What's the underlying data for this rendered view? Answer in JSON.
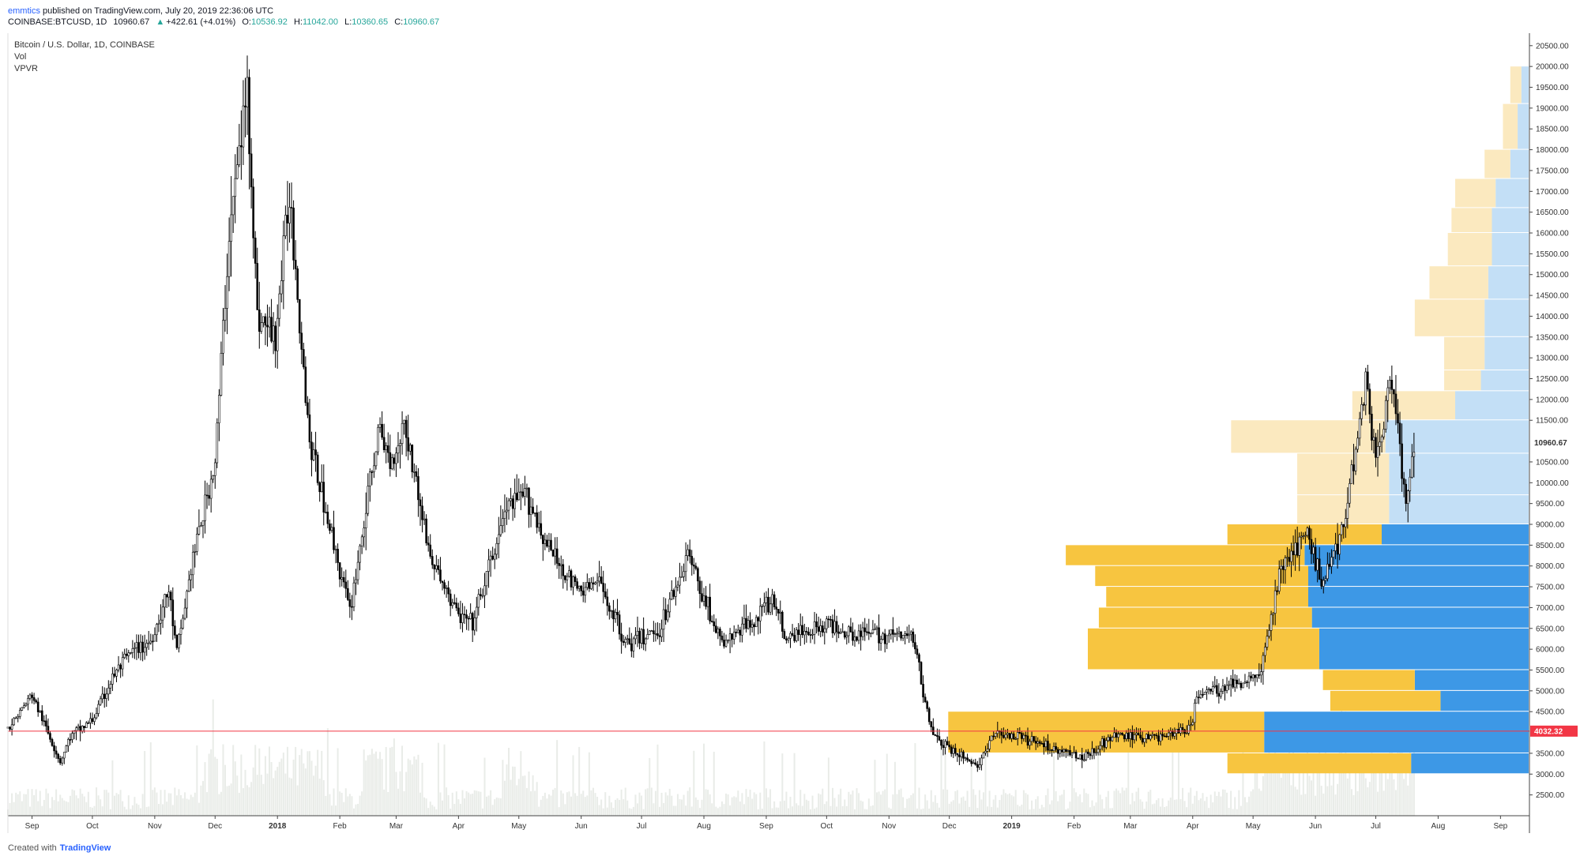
{
  "header": {
    "user": "emmtics",
    "published_text": " published on TradingView.com, July 20, 2019 22:36:06 UTC",
    "symbol": "COINBASE:BTCUSD, 1D",
    "last": "10960.67",
    "arrow": "▲",
    "change": "+422.61 (+4.01%)",
    "o_label": "O:",
    "o_val": "10536.92",
    "h_label": "H:",
    "h_val": "11042.00",
    "l_label": "L:",
    "l_val": "10360.65",
    "c_label": "C:",
    "c_val": "10960.67"
  },
  "legend": {
    "title": "Bitcoin / U.S. Dollar, 1D, COINBASE",
    "vol": "Vol",
    "vpvr": "VPVR"
  },
  "footer": {
    "created": "Created with",
    "brand": "TradingView"
  },
  "colors": {
    "candle": "#000000",
    "price_line": "#f23645",
    "volume_bar": "#e9ece8",
    "vpvr_up": "#f7c540",
    "vpvr_down": "#3d98e6",
    "vpvr_up_light": "#fbe9bf",
    "vpvr_down_light": "#c3dff6",
    "last_price_tag": "#000000"
  },
  "chart_data": {
    "type": "candlestick",
    "x_ticks": [
      "Sep",
      "Oct",
      "Nov",
      "Dec",
      "2018",
      "Feb",
      "Mar",
      "Apr",
      "May",
      "Jun",
      "Jul",
      "Aug",
      "Sep",
      "Oct",
      "Nov",
      "Dec",
      "2019",
      "Feb",
      "Mar",
      "Apr",
      "May",
      "Jun",
      "Jul",
      "Aug",
      "Sep"
    ],
    "y_ticks": [
      "20500.00",
      "20000.00",
      "19500.00",
      "19000.00",
      "18500.00",
      "18000.00",
      "17500.00",
      "17000.00",
      "16500.00",
      "16000.00",
      "15500.00",
      "15000.00",
      "14500.00",
      "14000.00",
      "13500.00",
      "13000.00",
      "12500.00",
      "12000.00",
      "11500.00",
      "10500.00",
      "10000.00",
      "9500.00",
      "9000.00",
      "8500.00",
      "8000.00",
      "7500.00",
      "7000.00",
      "6500.00",
      "6000.00",
      "5500.00",
      "5000.00",
      "4500.00",
      "3500.00",
      "3000.00",
      "2500.00"
    ],
    "ylim": [
      2000,
      20800
    ],
    "last_price_label": "10960.67",
    "horizontal_line_label": "4032.32",
    "horizontal_line_value": 4032.32,
    "price_path": [
      [
        "2017-08-20",
        4100
      ],
      [
        "2017-09-01",
        4900
      ],
      [
        "2017-09-15",
        3300
      ],
      [
        "2017-09-20",
        3900
      ],
      [
        "2017-10-01",
        4300
      ],
      [
        "2017-10-12",
        5400
      ],
      [
        "2017-10-20",
        5900
      ],
      [
        "2017-10-30",
        6200
      ],
      [
        "2017-11-08",
        7400
      ],
      [
        "2017-11-12",
        5900
      ],
      [
        "2017-11-20",
        8200
      ],
      [
        "2017-12-01",
        10500
      ],
      [
        "2017-12-08",
        16000
      ],
      [
        "2017-12-17",
        19500
      ],
      [
        "2017-12-22",
        14000
      ],
      [
        "2017-12-31",
        13500
      ],
      [
        "2018-01-07",
        17000
      ],
      [
        "2018-01-17",
        11000
      ],
      [
        "2018-02-06",
        6900
      ],
      [
        "2018-02-20",
        11200
      ],
      [
        "2018-02-27",
        10500
      ],
      [
        "2018-03-05",
        11500
      ],
      [
        "2018-03-18",
        8200
      ],
      [
        "2018-04-01",
        6800
      ],
      [
        "2018-04-08",
        6600
      ],
      [
        "2018-04-25",
        9400
      ],
      [
        "2018-05-05",
        9700
      ],
      [
        "2018-05-15",
        8500
      ],
      [
        "2018-05-30",
        7400
      ],
      [
        "2018-06-10",
        7600
      ],
      [
        "2018-06-24",
        6100
      ],
      [
        "2018-07-10",
        6500
      ],
      [
        "2018-07-24",
        8300
      ],
      [
        "2018-08-10",
        6100
      ],
      [
        "2018-08-25",
        6700
      ],
      [
        "2018-09-05",
        7200
      ],
      [
        "2018-09-10",
        6300
      ],
      [
        "2018-10-01",
        6600
      ],
      [
        "2018-10-15",
        6400
      ],
      [
        "2018-11-13",
        6300
      ],
      [
        "2018-11-20",
        4500
      ],
      [
        "2018-11-25",
        3800
      ],
      [
        "2018-12-15",
        3200
      ],
      [
        "2018-12-24",
        4000
      ],
      [
        "2019-01-10",
        3800
      ],
      [
        "2019-02-05",
        3400
      ],
      [
        "2019-02-20",
        3900
      ],
      [
        "2019-03-15",
        3900
      ],
      [
        "2019-03-31",
        4100
      ],
      [
        "2019-04-03",
        4900
      ],
      [
        "2019-04-25",
        5200
      ],
      [
        "2019-05-05",
        5500
      ],
      [
        "2019-05-15",
        8000
      ],
      [
        "2019-05-28",
        8700
      ],
      [
        "2019-06-05",
        7600
      ],
      [
        "2019-06-15",
        9000
      ],
      [
        "2019-06-26",
        12500
      ],
      [
        "2019-07-01",
        10500
      ],
      [
        "2019-07-09",
        12500
      ],
      [
        "2019-07-16",
        9400
      ],
      [
        "2019-07-20",
        10960
      ]
    ],
    "volume_profile": [
      {
        "low": 3000,
        "high": 3500,
        "up": 5000,
        "down": 3200
      },
      {
        "low": 3500,
        "high": 4500,
        "up": 8600,
        "down": 7200
      },
      {
        "low": 4500,
        "high": 5000,
        "up": 3000,
        "down": 2400
      },
      {
        "low": 5000,
        "high": 5500,
        "up": 2500,
        "down": 3100
      },
      {
        "low": 5500,
        "high": 6500,
        "up": 6300,
        "down": 5700
      },
      {
        "low": 6500,
        "high": 7000,
        "up": 5800,
        "down": 5900
      },
      {
        "low": 7000,
        "high": 7500,
        "up": 5500,
        "down": 6000
      },
      {
        "low": 7500,
        "high": 8000,
        "up": 5800,
        "down": 6000
      },
      {
        "low": 8000,
        "high": 8500,
        "up": 6500,
        "down": 6100
      },
      {
        "low": 8500,
        "high": 9000,
        "up": 4200,
        "down": 4000
      },
      {
        "low": 9000,
        "high": 9700,
        "up": 2500,
        "down": 3800
      },
      {
        "low": 9700,
        "high": 10700,
        "up": 2500,
        "down": 3800
      },
      {
        "low": 10700,
        "high": 11500,
        "up": 4200,
        "down": 3900
      },
      {
        "low": 11500,
        "high": 12200,
        "up": 2800,
        "down": 2000
      },
      {
        "low": 12200,
        "high": 12700,
        "up": 1000,
        "down": 1300
      },
      {
        "low": 12700,
        "high": 13500,
        "up": 1100,
        "down": 1200
      },
      {
        "low": 13500,
        "high": 14400,
        "up": 1900,
        "down": 1200
      },
      {
        "low": 14400,
        "high": 15200,
        "up": 1600,
        "down": 1100
      },
      {
        "low": 15200,
        "high": 16000,
        "up": 1200,
        "down": 1000
      },
      {
        "low": 16000,
        "high": 16600,
        "up": 1100,
        "down": 1000
      },
      {
        "low": 16600,
        "high": 17300,
        "up": 1100,
        "down": 900
      },
      {
        "low": 17300,
        "high": 18000,
        "up": 700,
        "down": 500
      },
      {
        "low": 18000,
        "high": 19100,
        "up": 400,
        "down": 300
      },
      {
        "low": 19100,
        "high": 20000,
        "up": 300,
        "down": 200
      }
    ]
  }
}
